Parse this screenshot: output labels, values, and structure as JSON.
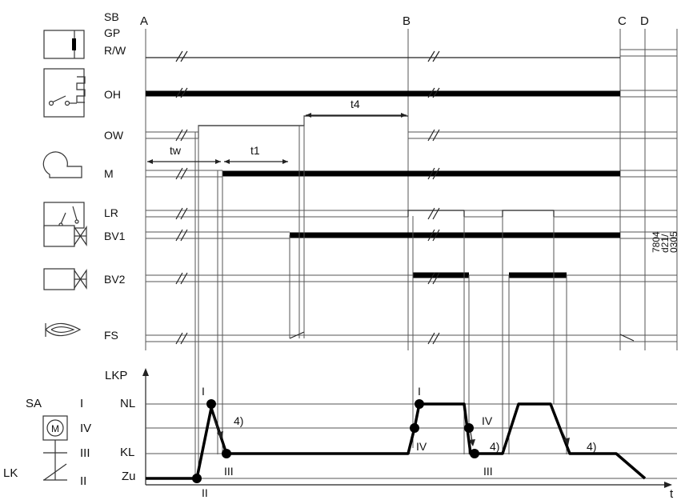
{
  "columns": {
    "a": "A",
    "b": "B",
    "c": "C",
    "d": "D"
  },
  "signals": {
    "sb": "SB",
    "gp": "GP",
    "rw": "R/W",
    "oh": "OH",
    "ow": "OW",
    "m": "M",
    "lr": "LR",
    "bv1": "BV1",
    "bv2": "BV2",
    "fs": "FS"
  },
  "times": {
    "tw": "tw",
    "t1": "t1",
    "t4": "t4",
    "t": "t"
  },
  "lkp": {
    "axis": "LKP",
    "nl": "NL",
    "kl": "KL",
    "zu": "Zu"
  },
  "legend": {
    "sa": "SA",
    "lk": "LK",
    "motor": "M",
    "i": "I",
    "iv": "IV",
    "iii": "III",
    "ii": "II"
  },
  "positions": {
    "i": "I",
    "ii": "II",
    "iii": "III",
    "iv": "IV"
  },
  "notes": {
    "n4": "4)"
  },
  "doc_code": {
    "line1": "7804",
    "line2": "d21/",
    "line3": "0305"
  }
}
